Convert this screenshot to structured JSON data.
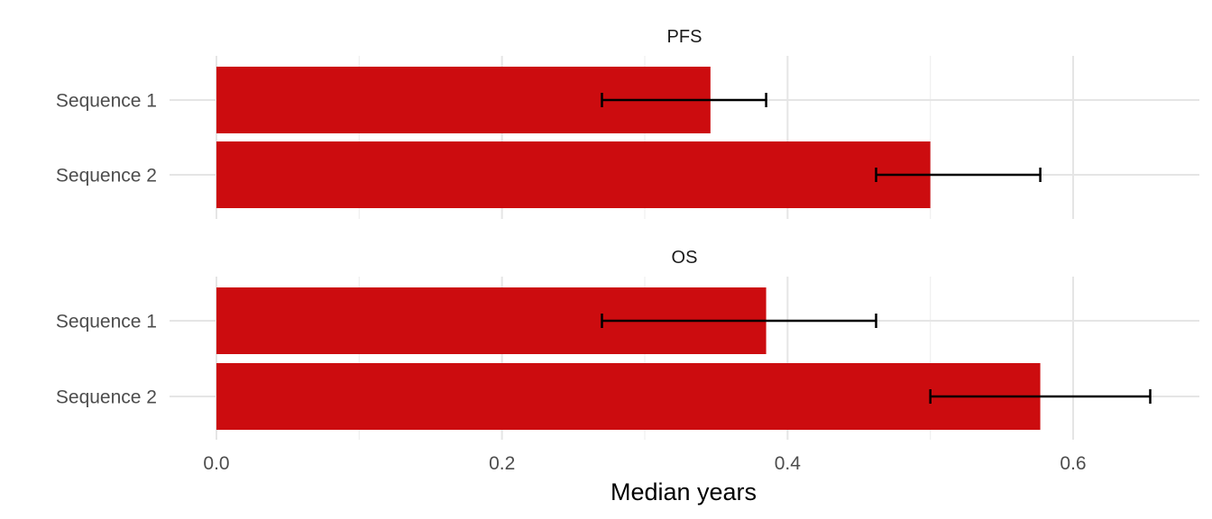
{
  "chart_data": {
    "type": "bar",
    "orientation": "horizontal",
    "xlabel": "Median years",
    "ylabel": "",
    "xlim": [
      0,
      0.68
    ],
    "x_ticks": [
      0.0,
      0.2,
      0.4,
      0.6
    ],
    "x_tick_labels": [
      "0.0",
      "0.2",
      "0.4",
      "0.6"
    ],
    "categories": [
      "Sequence 1",
      "Sequence 2"
    ],
    "grid": true,
    "bar_color": "#cc0c0f",
    "panels": [
      {
        "title": "PFS",
        "bars": [
          {
            "category": "Sequence 1",
            "value": 0.346,
            "ci_low": 0.27,
            "ci_high": 0.385
          },
          {
            "category": "Sequence 2",
            "value": 0.5,
            "ci_low": 0.462,
            "ci_high": 0.577
          }
        ]
      },
      {
        "title": "OS",
        "bars": [
          {
            "category": "Sequence 1",
            "value": 0.385,
            "ci_low": 0.27,
            "ci_high": 0.462
          },
          {
            "category": "Sequence 2",
            "value": 0.577,
            "ci_low": 0.5,
            "ci_high": 0.654
          }
        ]
      }
    ]
  }
}
